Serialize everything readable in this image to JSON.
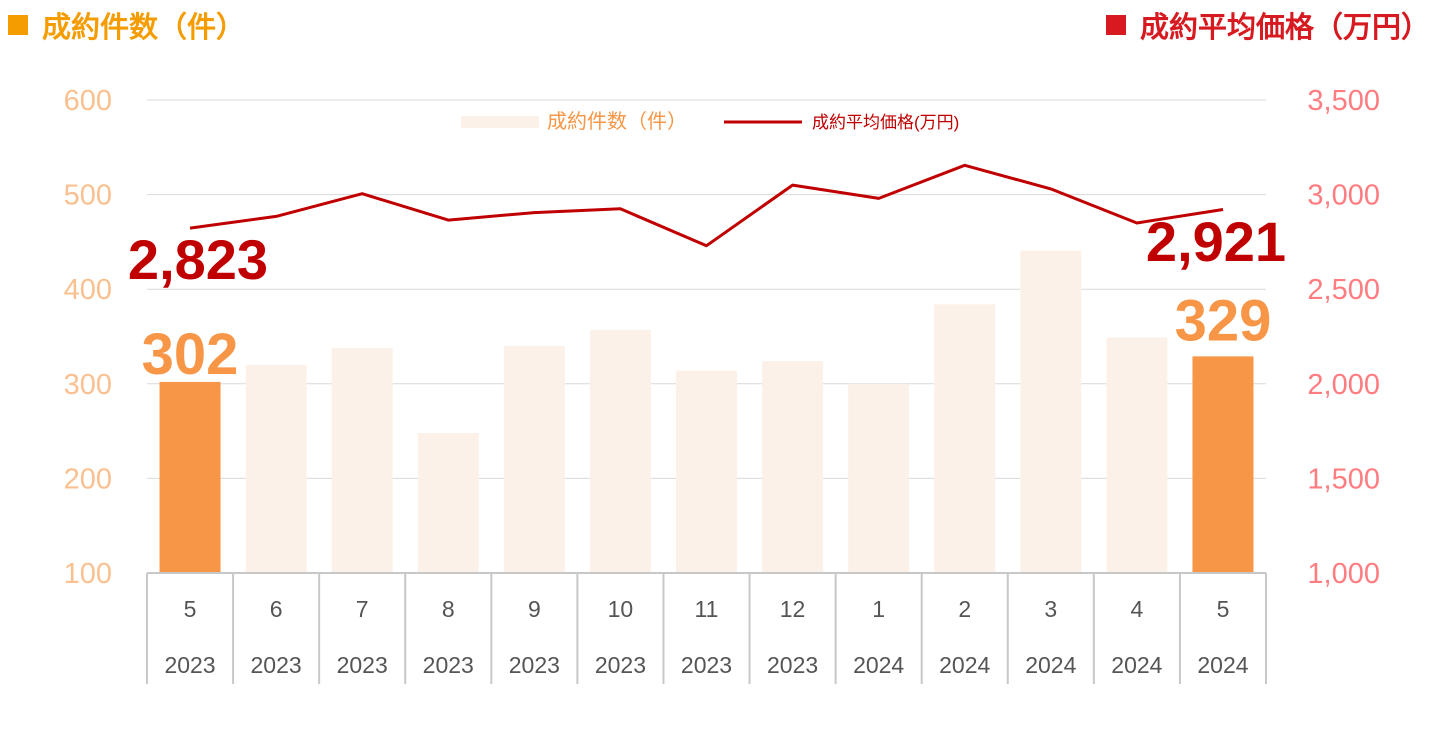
{
  "header": {
    "left_title": "成約件数（件）",
    "right_title": "成約平均価格（万円）"
  },
  "colors": {
    "count_accent": "#F59C00",
    "price_accent": "#D71920",
    "bar_highlight": "#F79646",
    "bar_normal": "#FCF1E8",
    "line": "#C00000",
    "left_axis_text": "#FAC090",
    "right_axis_text": "#FF7C80",
    "legend_count_text": "#F79646",
    "legend_price_text": "#C00000",
    "grid": "#D9D9D9",
    "category_axis_lines": "#C8C8C8"
  },
  "chart_data": {
    "type": "bar",
    "categories": [
      "5",
      "6",
      "7",
      "8",
      "9",
      "10",
      "11",
      "12",
      "1",
      "2",
      "3",
      "4",
      "5"
    ],
    "years": [
      "2023",
      "2023",
      "2023",
      "2023",
      "2023",
      "2023",
      "2023",
      "2023",
      "2024",
      "2024",
      "2024",
      "2024",
      "2024"
    ],
    "series": [
      {
        "name": "成約件数（件）",
        "type": "bar",
        "axis": "left",
        "values": [
          302,
          320,
          338,
          248,
          340,
          357,
          314,
          324,
          300,
          384,
          441,
          349,
          329
        ],
        "highlight": [
          0,
          12
        ]
      },
      {
        "name": "成約平均価格(万円)",
        "type": "line",
        "axis": "right",
        "values": [
          2823,
          2885,
          3005,
          2865,
          2905,
          2925,
          2730,
          3050,
          2980,
          3155,
          3030,
          2850,
          2921
        ]
      }
    ],
    "left_axis": {
      "ylim": [
        100,
        600
      ],
      "ticks": [
        "100",
        "200",
        "300",
        "400",
        "500",
        "600"
      ]
    },
    "right_axis": {
      "ylim": [
        1000,
        3500
      ],
      "ticks": [
        "1,000",
        "1,500",
        "2,000",
        "2,500",
        "3,000",
        "3,500"
      ]
    },
    "data_labels": {
      "count_first": "302",
      "count_last": "329",
      "price_first": "2,823",
      "price_last": "2,921"
    },
    "legend": {
      "position": "top-center",
      "items": [
        "成約件数（件）",
        "成約平均価格(万円)"
      ]
    },
    "grid": true
  }
}
